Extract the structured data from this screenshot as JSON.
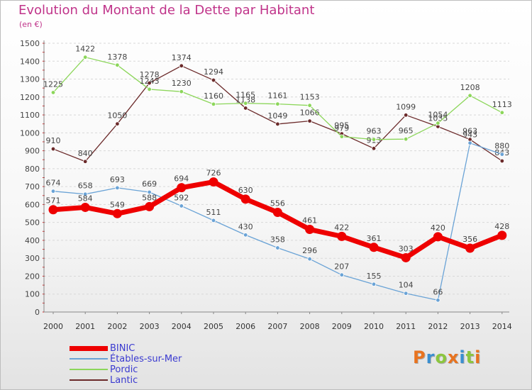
{
  "chart_data": {
    "type": "line",
    "title": "Evolution du Montant de la Dette par Habitant",
    "subtitle": "(en €)",
    "xlabel": "",
    "ylabel": "",
    "ylim": [
      0,
      1500
    ],
    "yticks": [
      0,
      100,
      200,
      300,
      400,
      500,
      600,
      700,
      800,
      900,
      1000,
      1100,
      1200,
      1300,
      1400,
      1500
    ],
    "categories": [
      "2000",
      "2001",
      "2002",
      "2003",
      "2004",
      "2005",
      "2006",
      "2007",
      "2008",
      "2009",
      "2010",
      "2011",
      "2012",
      "2013",
      "2014"
    ],
    "grid": "horizontal dashed",
    "legend_position": "bottom-left",
    "series": [
      {
        "name": "Lantic",
        "color": "#6b2a2a",
        "width": 1.3,
        "marker": 2.8,
        "values": [
          910,
          840,
          1050,
          1278,
          1374,
          1294,
          1138,
          1049,
          1066,
          995,
          913,
          1099,
          1035,
          963,
          843
        ]
      },
      {
        "name": "Pordic",
        "color": "#8cd65a",
        "width": 1.3,
        "marker": 2.8,
        "values": [
          1225,
          1422,
          1378,
          1243,
          1230,
          1160,
          1165,
          1161,
          1153,
          979,
          963,
          965,
          1054,
          1208,
          1113
        ]
      },
      {
        "name": "Étables-sur-Mer",
        "color": "#6aa3d6",
        "width": 1.3,
        "marker": 2.8,
        "values": [
          674,
          658,
          693,
          669,
          592,
          511,
          430,
          358,
          296,
          207,
          155,
          104,
          66,
          943,
          880
        ]
      },
      {
        "name": "BINIC",
        "color": "#ee0000",
        "width": 7,
        "marker": 6.5,
        "values": [
          571,
          584,
          549,
          588,
          694,
          726,
          630,
          556,
          461,
          422,
          361,
          303,
          420,
          356,
          428
        ]
      }
    ]
  },
  "legend": [
    {
      "label": "BINIC",
      "color": "#ee0000"
    },
    {
      "label": "Étables-sur-Mer",
      "color": "#6aa3d6"
    },
    {
      "label": "Pordic",
      "color": "#8cd65a"
    },
    {
      "label": "Lantic",
      "color": "#6b2a2a"
    }
  ],
  "logo": {
    "text": "Proxiti",
    "letters": [
      {
        "ch": "P",
        "color": "#e8731f"
      },
      {
        "ch": "r",
        "color": "#3a8fd0"
      },
      {
        "ch": "o",
        "color": "#8cc63f"
      },
      {
        "ch": "x",
        "color": "#e8731f"
      },
      {
        "ch": "i",
        "color": "#3a8fd0"
      },
      {
        "ch": "t",
        "color": "#8cc63f"
      },
      {
        "ch": "i",
        "color": "#e8731f"
      }
    ]
  }
}
